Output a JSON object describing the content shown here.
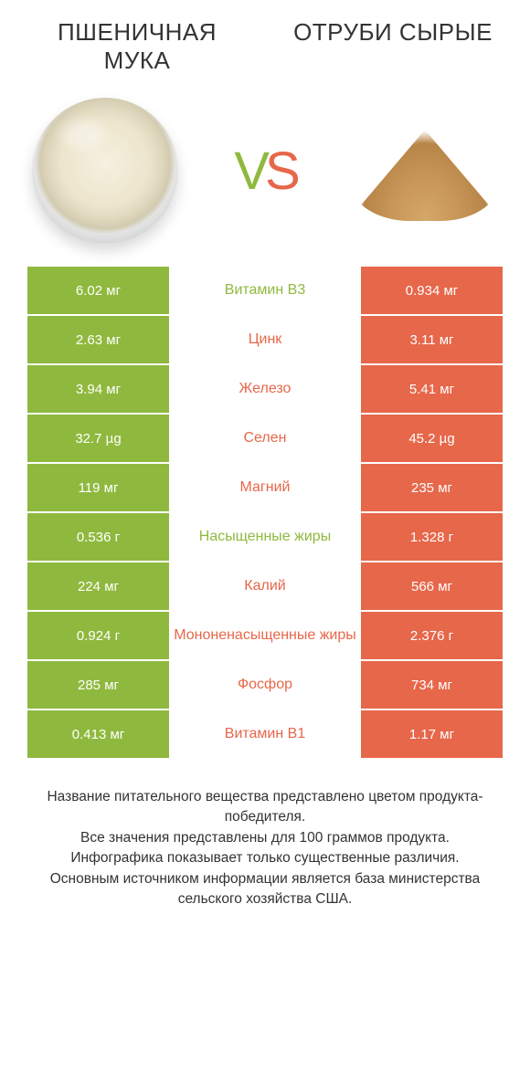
{
  "left_title": "ПШЕНИЧНАЯ МУКА",
  "right_title": "ОТРУБИ СЫРЫЕ",
  "vs_v": "V",
  "vs_s": "S",
  "colors": {
    "green": "#8fb93e",
    "orange": "#e7674a",
    "text": "#333333",
    "white": "#ffffff"
  },
  "rows": [
    {
      "left": "6.02 мг",
      "mid": "Витамин B3",
      "right": "0.934 мг",
      "winner": "left"
    },
    {
      "left": "2.63 мг",
      "mid": "Цинк",
      "right": "3.11 мг",
      "winner": "right"
    },
    {
      "left": "3.94 мг",
      "mid": "Железо",
      "right": "5.41 мг",
      "winner": "right"
    },
    {
      "left": "32.7 µg",
      "mid": "Селен",
      "right": "45.2 µg",
      "winner": "right"
    },
    {
      "left": "119 мг",
      "mid": "Магний",
      "right": "235 мг",
      "winner": "right"
    },
    {
      "left": "0.536 г",
      "mid": "Насыщенные жиры",
      "right": "1.328 г",
      "winner": "left"
    },
    {
      "left": "224 мг",
      "mid": "Калий",
      "right": "566 мг",
      "winner": "right"
    },
    {
      "left": "0.924 г",
      "mid": "Мононенасыщенные жиры",
      "right": "2.376 г",
      "winner": "right"
    },
    {
      "left": "285 мг",
      "mid": "Фосфор",
      "right": "734 мг",
      "winner": "right"
    },
    {
      "left": "0.413 мг",
      "mid": "Витамин B1",
      "right": "1.17 мг",
      "winner": "right"
    }
  ],
  "footer_lines": [
    "Название питательного вещества представлено цветом продукта-победителя.",
    "Все значения представлены для 100 граммов продукта.",
    "Инфографика показывает только существенные различия.",
    "Основным источником информации является база министерства сельского хозяйства США."
  ]
}
